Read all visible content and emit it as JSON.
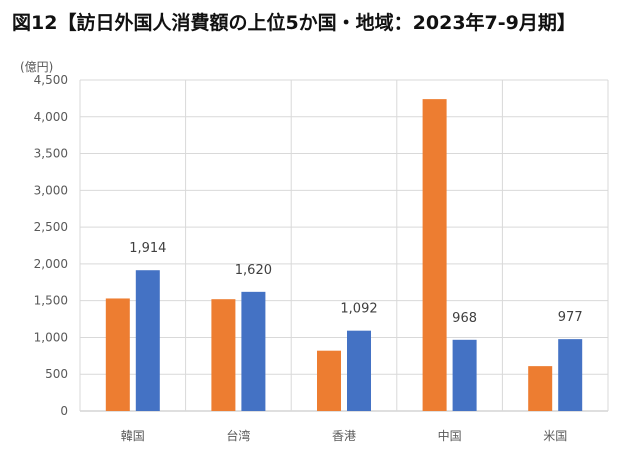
{
  "title": "図12【訪日外国人消費額の上位5か国・地域：2023年7-9月期】",
  "chart_data": {
    "type": "bar",
    "unit_label": "(億円)",
    "categories": [
      "韓国",
      "台湾",
      "香港",
      "中国",
      "米国"
    ],
    "series": [
      {
        "values": [
          1530,
          1520,
          820,
          4240,
          610
        ],
        "color": "#ED7D31"
      },
      {
        "values": [
          1914,
          1620,
          1092,
          968,
          977
        ],
        "color": "#4472C4"
      }
    ],
    "data_labels": [
      "1,914",
      "1,620",
      "1,092",
      "968",
      "977"
    ],
    "ylim": [
      0,
      4500
    ],
    "y_ticks": [
      0,
      500,
      1000,
      1500,
      2000,
      2500,
      3000,
      3500,
      4000,
      4500
    ],
    "y_tick_labels": [
      "0",
      "500",
      "1,000",
      "1,500",
      "2,000",
      "2,500",
      "3,000",
      "3,500",
      "4,000",
      "4,500"
    ],
    "grid": true,
    "legend": "none"
  }
}
